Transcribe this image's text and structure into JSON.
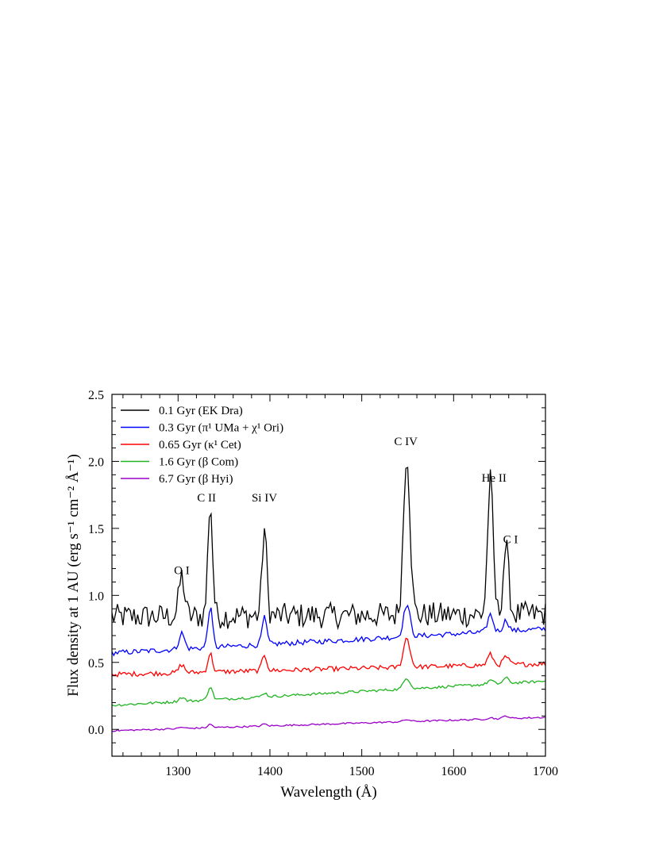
{
  "chart_data": {
    "type": "line",
    "title": "",
    "xlabel": "Wavelength (Å)",
    "ylabel": "Flux density at 1 AU (erg s⁻¹ cm⁻² Å⁻¹)",
    "xlim": [
      1228,
      1700
    ],
    "ylim": [
      -0.2,
      2.5
    ],
    "xticks": [
      1300,
      1400,
      1500,
      1600,
      1700
    ],
    "xtick_labels": [
      "1300",
      "1400",
      "1500",
      "1600",
      "1700"
    ],
    "yticks": [
      0.0,
      0.5,
      1.0,
      1.5,
      2.0,
      2.5
    ],
    "ytick_labels": [
      "0.0",
      "0.5",
      "1.0",
      "1.5",
      "2.0",
      "2.5"
    ],
    "grid": false,
    "legend_position": "top-left",
    "series": [
      {
        "name": "0.1 Gyr (EK Dra)",
        "color": "#000000",
        "baseline": 0.84,
        "noise": 0.095,
        "baseline_slope": 0.02
      },
      {
        "name": "0.3 Gyr (π¹ UMa + χ¹ Ori)",
        "color": "#0000ff",
        "baseline": 0.57,
        "noise": 0.02,
        "baseline_slope": 0.18
      },
      {
        "name": "0.65 Gyr (κ¹ Cet)",
        "color": "#ff0000",
        "baseline": 0.41,
        "noise": 0.018,
        "baseline_slope": 0.08
      },
      {
        "name": "1.6 Gyr (β Com)",
        "color": "#22b422",
        "baseline": 0.18,
        "noise": 0.01,
        "baseline_slope": 0.18
      },
      {
        "name": "6.7 Gyr (β Hyi)",
        "color": "#9a00c8",
        "baseline": -0.01,
        "noise": 0.006,
        "baseline_slope": 0.1
      }
    ],
    "emission_lines": [
      {
        "label": "O I",
        "wavelength": 1304,
        "width": 3,
        "peaks": [
          0.3,
          0.12,
          0.06,
          0.03,
          0.01
        ]
      },
      {
        "label": "C II",
        "wavelength": 1335,
        "width": 2.5,
        "peaks": [
          0.85,
          0.3,
          0.14,
          0.1,
          0.025
        ]
      },
      {
        "label": "Si IV",
        "wavelength": 1394,
        "width": 2.5,
        "peaks": [
          0.65,
          0.2,
          0.12,
          0.03,
          0.015
        ]
      },
      {
        "label": "C IV",
        "wavelength": 1549,
        "width": 3.5,
        "peaks": [
          1.22,
          0.24,
          0.22,
          0.08,
          0.015
        ]
      },
      {
        "label": "He II",
        "wavelength": 1640,
        "width": 3,
        "peaks": [
          1.0,
          0.13,
          0.08,
          0.03,
          0.01
        ]
      },
      {
        "label": "C I",
        "wavelength": 1657,
        "width": 3,
        "peaks": [
          0.5,
          0.08,
          0.06,
          0.04,
          0.02
        ]
      }
    ],
    "line_labels": [
      {
        "text": "O I",
        "x": 1304,
        "y": 1.16
      },
      {
        "text": "C II",
        "x": 1331,
        "y": 1.7
      },
      {
        "text": "Si IV",
        "x": 1394,
        "y": 1.7
      },
      {
        "text": "C IV",
        "x": 1548,
        "y": 2.12
      },
      {
        "text": "He II",
        "x": 1644,
        "y": 1.85
      },
      {
        "text": "C I",
        "x": 1662,
        "y": 1.39
      }
    ]
  }
}
